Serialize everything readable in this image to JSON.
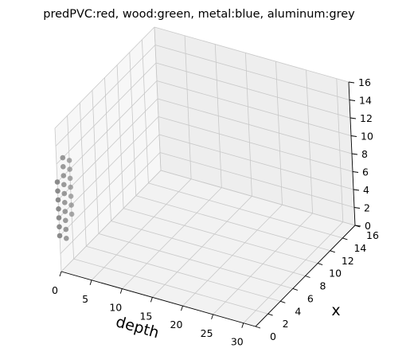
{
  "chart_data": {
    "type": "scatter",
    "projection": "3d",
    "title": "predPVC:red, wood:green, metal:blue, aluminum:grey",
    "xlabel": "depth",
    "ylabel": "x",
    "zlabel": "",
    "xlim": [
      0,
      32
    ],
    "ylim": [
      0,
      16
    ],
    "zlim": [
      0,
      16
    ],
    "x_ticks": [
      "0",
      "5",
      "10",
      "15",
      "20",
      "25",
      "30"
    ],
    "y_ticks": [
      "0",
      "2",
      "4",
      "6",
      "8",
      "10",
      "12",
      "14",
      "16"
    ],
    "z_ticks": [
      "0",
      "2",
      "4",
      "6",
      "8",
      "10",
      "12",
      "14",
      "16"
    ],
    "grid": true,
    "series": [
      {
        "name": "aluminum",
        "color": "#808080",
        "points": [
          {
            "depth": 0,
            "x": 0,
            "z": 10
          },
          {
            "depth": 0,
            "x": 0,
            "z": 9
          },
          {
            "depth": 0,
            "x": 0,
            "z": 8
          },
          {
            "depth": 0,
            "x": 0,
            "z": 7
          },
          {
            "depth": 0,
            "x": 0,
            "z": 6
          },
          {
            "depth": 0,
            "x": 0,
            "z": 5
          },
          {
            "depth": 0,
            "x": 0,
            "z": 4
          },
          {
            "depth": 0,
            "x": 1,
            "z": 12
          },
          {
            "depth": 0,
            "x": 1,
            "z": 11
          },
          {
            "depth": 0,
            "x": 1,
            "z": 10
          },
          {
            "depth": 0,
            "x": 1,
            "z": 9
          },
          {
            "depth": 0,
            "x": 1,
            "z": 8
          },
          {
            "depth": 0,
            "x": 1,
            "z": 7
          },
          {
            "depth": 0,
            "x": 1,
            "z": 6
          },
          {
            "depth": 0,
            "x": 1,
            "z": 5
          },
          {
            "depth": 0,
            "x": 1,
            "z": 4
          },
          {
            "depth": 0,
            "x": 1,
            "z": 3
          },
          {
            "depth": 0,
            "x": 2,
            "z": 11
          },
          {
            "depth": 0,
            "x": 2,
            "z": 10
          },
          {
            "depth": 0,
            "x": 2,
            "z": 9
          },
          {
            "depth": 0,
            "x": 2,
            "z": 8
          },
          {
            "depth": 0,
            "x": 2,
            "z": 7
          },
          {
            "depth": 0,
            "x": 2,
            "z": 6
          },
          {
            "depth": 0,
            "x": 2,
            "z": 5
          }
        ]
      }
    ]
  }
}
